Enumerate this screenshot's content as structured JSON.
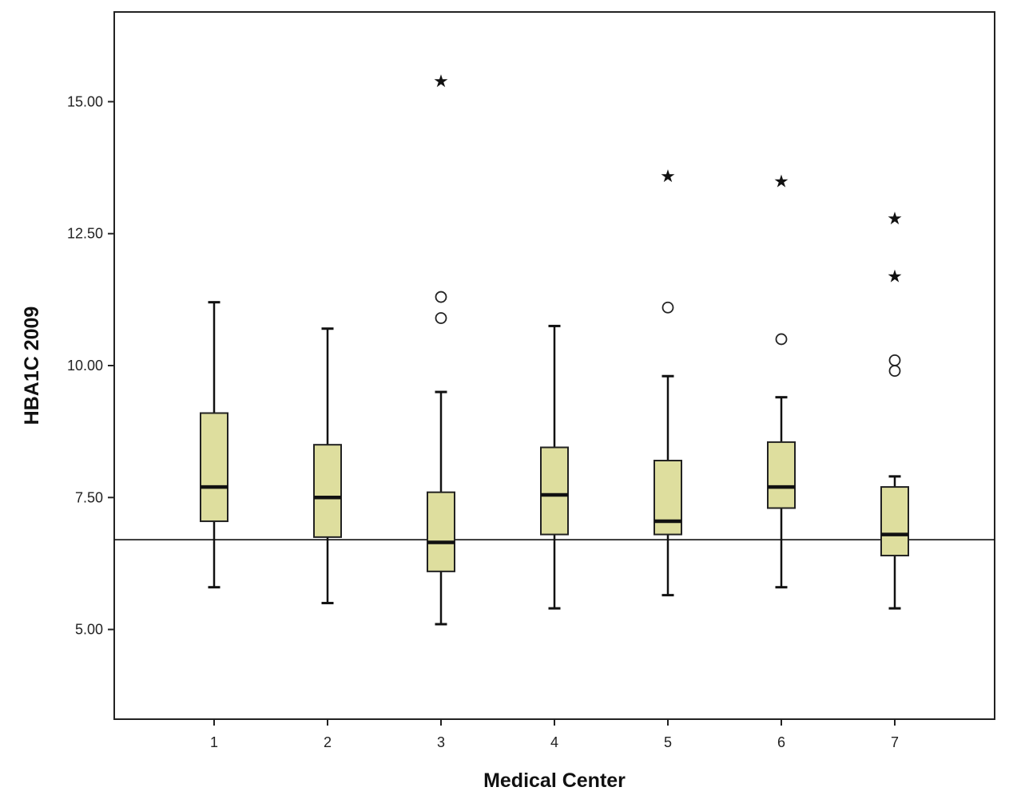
{
  "chart_data": {
    "type": "boxplot",
    "xlabel": "Medical Center",
    "ylabel": "HBA1C 2009",
    "ylim": [
      3.3,
      16.7
    ],
    "yticks": [
      5.0,
      7.5,
      10.0,
      12.5,
      15.0
    ],
    "ytick_labels": [
      "5.00",
      "7.50",
      "10.00",
      "12.50",
      "15.00"
    ],
    "reference_line": 6.7,
    "grid": false,
    "box_color": "#dede9e",
    "line_color": "#111111",
    "categories": [
      "1",
      "2",
      "3",
      "4",
      "5",
      "6",
      "7"
    ],
    "boxes": [
      {
        "category": "1",
        "whisker_low": 5.8,
        "q1": 7.05,
        "median": 7.7,
        "q3": 9.1,
        "whisker_high": 11.2,
        "outliers": [],
        "extremes": []
      },
      {
        "category": "2",
        "whisker_low": 5.5,
        "q1": 6.75,
        "median": 7.5,
        "q3": 8.5,
        "whisker_high": 10.7,
        "outliers": [],
        "extremes": []
      },
      {
        "category": "3",
        "whisker_low": 5.1,
        "q1": 6.1,
        "median": 6.65,
        "q3": 7.6,
        "whisker_high": 9.5,
        "outliers": [
          10.9,
          11.3
        ],
        "extremes": [
          15.4
        ]
      },
      {
        "category": "4",
        "whisker_low": 5.4,
        "q1": 6.8,
        "median": 7.55,
        "q3": 8.45,
        "whisker_high": 10.75,
        "outliers": [],
        "extremes": []
      },
      {
        "category": "5",
        "whisker_low": 5.65,
        "q1": 6.8,
        "median": 7.05,
        "q3": 8.2,
        "whisker_high": 9.8,
        "outliers": [
          11.1
        ],
        "extremes": [
          13.6
        ]
      },
      {
        "category": "6",
        "whisker_low": 5.8,
        "q1": 7.3,
        "median": 7.7,
        "q3": 8.55,
        "whisker_high": 9.4,
        "outliers": [
          10.5
        ],
        "extremes": [
          13.5
        ]
      },
      {
        "category": "7",
        "whisker_low": 5.4,
        "q1": 6.4,
        "median": 6.8,
        "q3": 7.7,
        "whisker_high": 7.9,
        "outliers": [
          9.9,
          10.1
        ],
        "extremes": [
          11.7,
          12.8
        ]
      }
    ]
  }
}
